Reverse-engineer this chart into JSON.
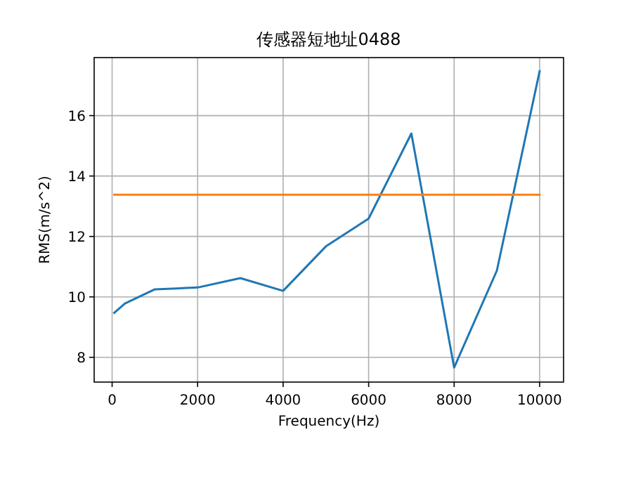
{
  "chart_data": {
    "type": "line",
    "title": "传感器短地址0488",
    "xlabel": "Frequency(Hz)",
    "ylabel": "RMS(m/s^2)",
    "xlim": [
      -420,
      10560
    ],
    "ylim": [
      7.18,
      17.92
    ],
    "xticks": [
      0,
      2000,
      4000,
      6000,
      8000,
      10000
    ],
    "yticks": [
      8,
      10,
      12,
      14,
      16
    ],
    "grid": true,
    "series": [
      {
        "color": "#1f77b4",
        "x": [
          50,
          300,
          1000,
          2000,
          3000,
          4000,
          5000,
          6000,
          7000,
          8000,
          9000,
          10000
        ],
        "values": [
          9.47,
          9.78,
          10.25,
          10.31,
          10.62,
          10.2,
          11.67,
          12.59,
          15.41,
          7.66,
          10.87,
          17.47
        ]
      },
      {
        "color": "#ff7f0e",
        "type": "line",
        "x": [
          50,
          10000
        ],
        "values": [
          13.38,
          13.38
        ]
      }
    ]
  }
}
